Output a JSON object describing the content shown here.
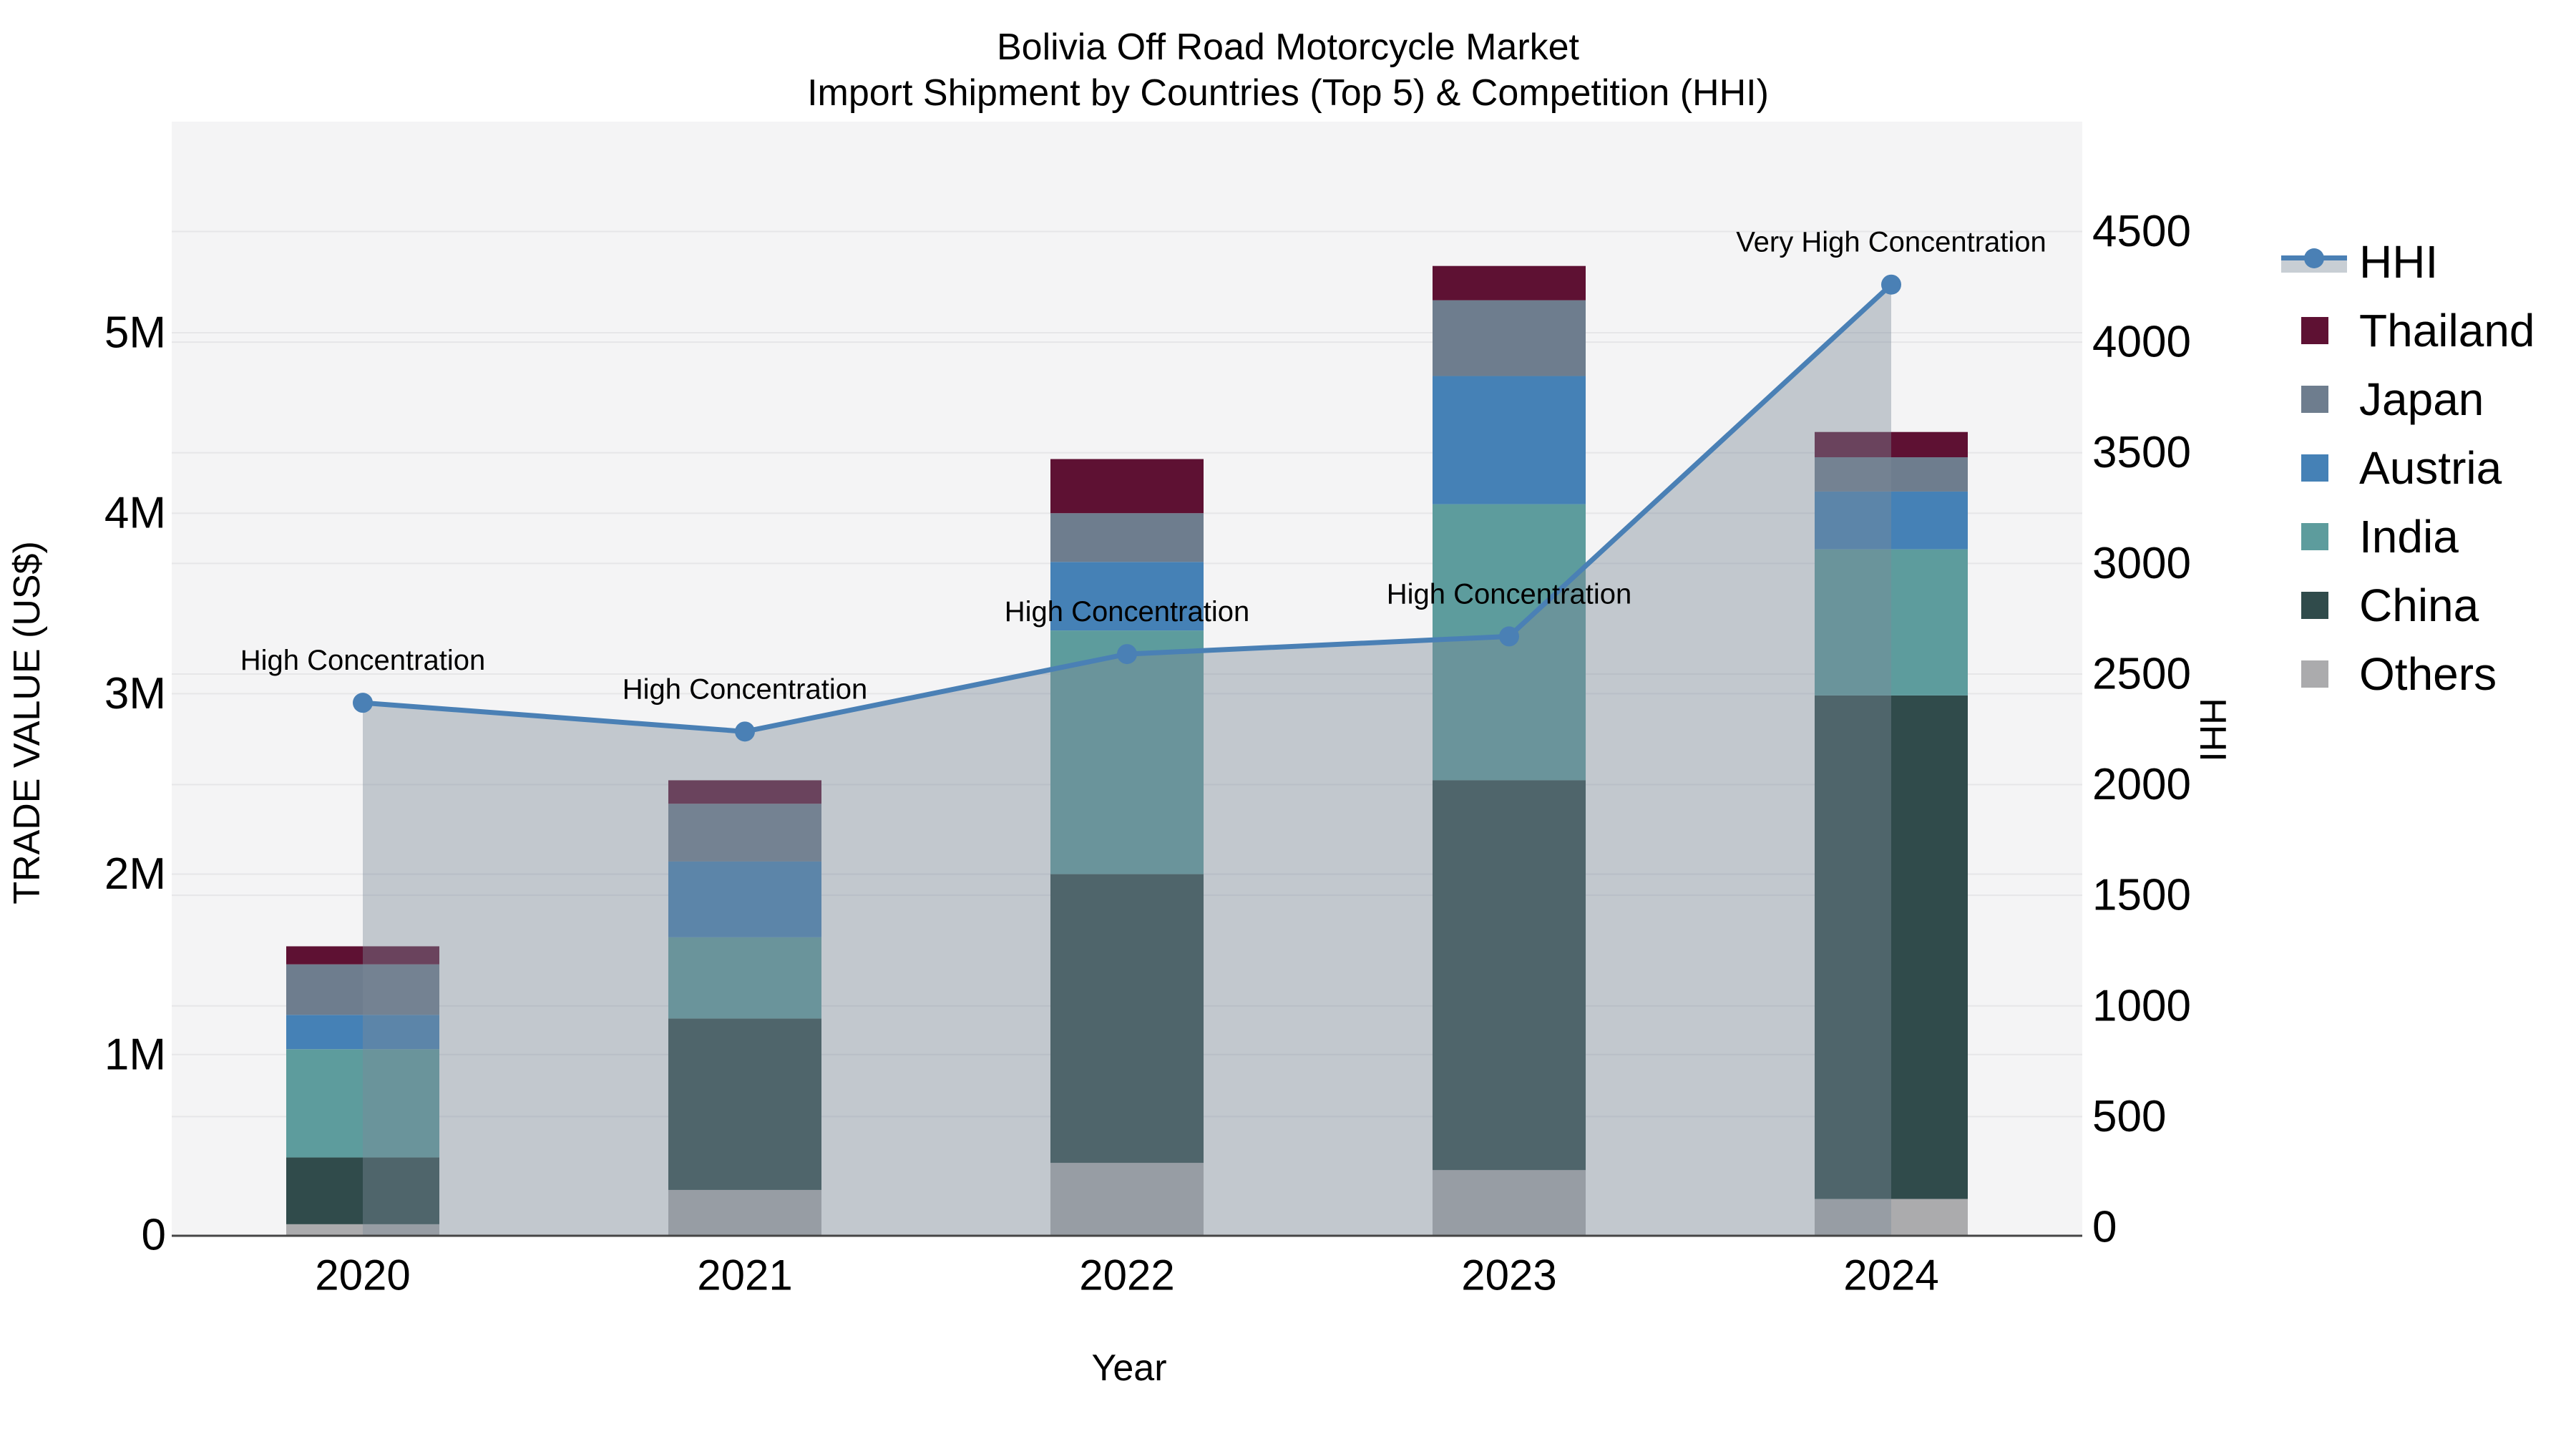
{
  "title": {
    "line1": "Bolivia Off Road Motorcycle Market",
    "line2": "Import Shipment by Countries (Top 5) & Competition (HHI)"
  },
  "axes": {
    "x": {
      "title": "Year",
      "categories": [
        "2020",
        "2021",
        "2022",
        "2023",
        "2024"
      ]
    },
    "y_left": {
      "title": "TRADE VALUE (US$)",
      "tick_labels": [
        "0",
        "1M",
        "2M",
        "3M",
        "4M",
        "5M"
      ],
      "tick_values_millions": [
        0,
        1,
        2,
        3,
        4,
        5
      ]
    },
    "y_right": {
      "title": "HHI",
      "tick_labels": [
        "0",
        "500",
        "1000",
        "1500",
        "2000",
        "2500",
        "3000",
        "3500",
        "4000",
        "4500"
      ],
      "tick_values": [
        0,
        500,
        1000,
        1500,
        2000,
        2500,
        3000,
        3500,
        4000,
        4500
      ]
    }
  },
  "legend": {
    "items": [
      {
        "label": "HHI",
        "type": "line"
      },
      {
        "label": "Thailand",
        "type": "box",
        "color": "#5e1133"
      },
      {
        "label": "Japan",
        "type": "box",
        "color": "#6e7d8e"
      },
      {
        "label": "Austria",
        "type": "box",
        "color": "#4581b6"
      },
      {
        "label": "India",
        "type": "box",
        "color": "#5d9c9d"
      },
      {
        "label": "China",
        "type": "box",
        "color": "#304b4b"
      },
      {
        "label": "Others",
        "type": "box",
        "color": "#ababad"
      }
    ]
  },
  "colors": {
    "hhi_line": "#4a80b5",
    "hhi_area": "rgba(124,138,152,0.42)",
    "legend_band": "#c8ced4",
    "thailand": "#5e1133",
    "japan": "#6e7d8e",
    "austria": "#4581b6",
    "india": "#5d9c9d",
    "china": "#304b4b",
    "others": "#ababad",
    "plot_bg": "#f4f4f5",
    "gridline": "#e6e6e8",
    "axis_line": "#454545"
  },
  "chart_data": {
    "type": "stacked-bar+line",
    "categories": [
      "2020",
      "2021",
      "2022",
      "2023",
      "2024"
    ],
    "bar_value_unit": "trade value, millions US$ (left axis)",
    "series": [
      {
        "name": "Others",
        "color": "#ababad",
        "values": [
          0.06,
          0.25,
          0.4,
          0.36,
          0.2
        ]
      },
      {
        "name": "China",
        "color": "#304b4b",
        "values": [
          0.37,
          0.95,
          1.6,
          2.16,
          2.79
        ]
      },
      {
        "name": "India",
        "color": "#5d9c9d",
        "values": [
          0.6,
          0.45,
          1.35,
          1.53,
          0.81
        ]
      },
      {
        "name": "Austria",
        "color": "#4581b6",
        "values": [
          0.19,
          0.42,
          0.38,
          0.71,
          0.32
        ]
      },
      {
        "name": "Japan",
        "color": "#6e7d8e",
        "values": [
          0.28,
          0.32,
          0.27,
          0.42,
          0.19
        ]
      },
      {
        "name": "Thailand",
        "color": "#5e1133",
        "values": [
          0.1,
          0.13,
          0.3,
          0.19,
          0.14
        ]
      }
    ],
    "bar_totals_millions": [
      1.6,
      2.52,
      4.3,
      5.37,
      4.45
    ],
    "line": {
      "name": "HHI",
      "axis": "right",
      "color": "#4a80b5",
      "values": [
        2370,
        2240,
        2590,
        2670,
        4260
      ],
      "area_fill": true
    },
    "annotations": [
      {
        "category": "2020",
        "text": "High Concentration"
      },
      {
        "category": "2021",
        "text": "High Concentration"
      },
      {
        "category": "2022",
        "text": "High Concentration"
      },
      {
        "category": "2023",
        "text": "High Concentration"
      },
      {
        "category": "2024",
        "text": "Very High Concentration"
      }
    ],
    "y_left_range_millions": [
      0,
      6.15
    ],
    "y_right_range": [
      0,
      5000
    ],
    "grid": true,
    "legend_position": "right",
    "stack_order": "bottom to top as listed in series"
  }
}
